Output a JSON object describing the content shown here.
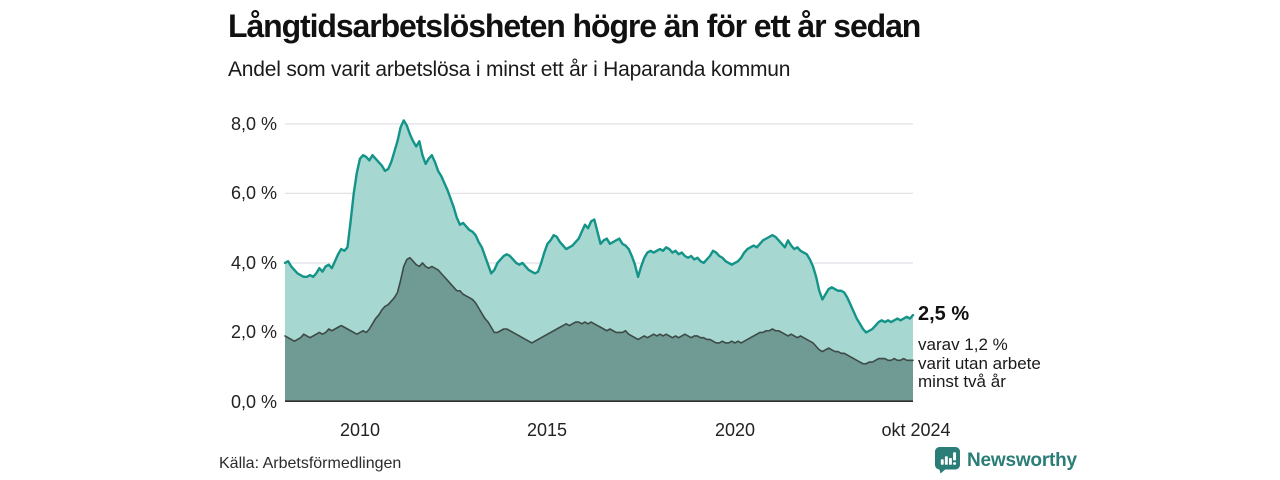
{
  "header": {
    "title": "Långtidsarbetslösheten högre än för ett år sedan",
    "subtitle": "Andel som varit arbetslösa i minst ett år i Haparanda kommun"
  },
  "footer": {
    "source": "Källa: Arbetsförmedlingen",
    "brand": "Newsworthy"
  },
  "colors": {
    "brand_teal": "#2b7d77",
    "light_area_fill": "#a6d7d0",
    "light_area_line": "#149489",
    "dark_area_fill": "#6f9b94",
    "dark_area_line": "#3d4a46",
    "gridline": "#e1e1e6",
    "baseline": "#2f2f2f"
  },
  "chart_data": {
    "type": "area",
    "title": "Långtidsarbetslösheten högre än för ett år sedan",
    "subtitle": "Andel som varit arbetslösa i minst ett år i Haparanda kommun",
    "region": "Haparanda kommun",
    "x_start": "2008-01",
    "x_end": "2024-10",
    "x_interval": "monthly",
    "x_tick_labels": [
      "2010",
      "2015",
      "2020",
      "okt 2024"
    ],
    "y_tick_labels": [
      "8,0 %",
      "6,0 %",
      "4,0 %",
      "2,0 %",
      "0,0 %"
    ],
    "ylim": [
      0,
      8.63
    ],
    "gridline_values": [
      2,
      4,
      6,
      8
    ],
    "grid": true,
    "legend_position": "none",
    "annotation": {
      "value_label": "2,5 %",
      "detail_lines": [
        "varav 1,2 %",
        "varit utan arbete",
        "minst två år"
      ]
    },
    "series": [
      {
        "name": "Andel arbetslösa minst ett år",
        "final_value": 2.5,
        "fill": "#a6d7d0",
        "line": "#149489",
        "line_width": 2.4,
        "values": [
          4.0,
          4.05,
          3.9,
          3.8,
          3.7,
          3.65,
          3.6,
          3.6,
          3.65,
          3.6,
          3.7,
          3.85,
          3.75,
          3.9,
          3.95,
          3.85,
          4.05,
          4.25,
          4.4,
          4.35,
          4.45,
          5.2,
          6.0,
          6.6,
          7.0,
          7.1,
          7.05,
          6.95,
          7.1,
          7.0,
          6.9,
          6.8,
          6.65,
          6.7,
          6.9,
          7.2,
          7.5,
          7.9,
          8.1,
          7.95,
          7.7,
          7.5,
          7.35,
          7.5,
          7.1,
          6.85,
          7.0,
          7.1,
          6.9,
          6.65,
          6.5,
          6.3,
          6.1,
          5.85,
          5.6,
          5.3,
          5.1,
          5.15,
          5.05,
          4.95,
          4.9,
          4.8,
          4.6,
          4.45,
          4.2,
          3.95,
          3.7,
          3.8,
          4.0,
          4.1,
          4.2,
          4.25,
          4.2,
          4.1,
          4.0,
          3.95,
          4.0,
          3.9,
          3.8,
          3.75,
          3.7,
          3.75,
          4.0,
          4.3,
          4.55,
          4.65,
          4.8,
          4.75,
          4.6,
          4.5,
          4.4,
          4.45,
          4.5,
          4.6,
          4.7,
          4.9,
          5.1,
          5.0,
          5.2,
          5.25,
          4.9,
          4.55,
          4.65,
          4.7,
          4.55,
          4.6,
          4.65,
          4.7,
          4.55,
          4.5,
          4.4,
          4.2,
          3.95,
          3.6,
          3.9,
          4.15,
          4.3,
          4.35,
          4.3,
          4.35,
          4.4,
          4.35,
          4.45,
          4.4,
          4.3,
          4.35,
          4.25,
          4.3,
          4.2,
          4.15,
          4.2,
          4.1,
          4.15,
          4.05,
          4.0,
          4.1,
          4.2,
          4.35,
          4.3,
          4.2,
          4.15,
          4.05,
          4.0,
          3.95,
          4.0,
          4.05,
          4.15,
          4.3,
          4.4,
          4.45,
          4.5,
          4.45,
          4.55,
          4.65,
          4.7,
          4.75,
          4.8,
          4.75,
          4.65,
          4.55,
          4.45,
          4.65,
          4.5,
          4.4,
          4.45,
          4.35,
          4.3,
          4.25,
          4.1,
          3.9,
          3.6,
          3.2,
          2.95,
          3.1,
          3.25,
          3.3,
          3.25,
          3.2,
          3.2,
          3.15,
          3.0,
          2.8,
          2.6,
          2.4,
          2.25,
          2.1,
          2.0,
          2.05,
          2.1,
          2.2,
          2.3,
          2.35,
          2.3,
          2.35,
          2.3,
          2.35,
          2.4,
          2.35,
          2.4,
          2.45,
          2.4,
          2.5
        ]
      },
      {
        "name": "Andel arbetslösa minst två år",
        "final_value": 1.2,
        "fill": "#6f9b94",
        "line": "#3d4a46",
        "line_width": 1.6,
        "values": [
          1.9,
          1.85,
          1.8,
          1.75,
          1.8,
          1.85,
          1.95,
          1.9,
          1.85,
          1.9,
          1.95,
          2.0,
          1.95,
          2.0,
          2.1,
          2.05,
          2.1,
          2.15,
          2.2,
          2.15,
          2.1,
          2.05,
          2.0,
          1.95,
          2.0,
          2.05,
          2.0,
          2.1,
          2.25,
          2.4,
          2.5,
          2.65,
          2.75,
          2.8,
          2.9,
          3.0,
          3.15,
          3.5,
          3.9,
          4.1,
          4.15,
          4.05,
          3.95,
          3.9,
          4.0,
          3.9,
          3.85,
          3.9,
          3.85,
          3.8,
          3.7,
          3.6,
          3.5,
          3.4,
          3.3,
          3.2,
          3.2,
          3.1,
          3.05,
          3.0,
          2.95,
          2.85,
          2.7,
          2.55,
          2.4,
          2.3,
          2.15,
          2.0,
          2.0,
          2.05,
          2.1,
          2.1,
          2.05,
          2.0,
          1.95,
          1.9,
          1.85,
          1.8,
          1.75,
          1.7,
          1.75,
          1.8,
          1.85,
          1.9,
          1.95,
          2.0,
          2.05,
          2.1,
          2.15,
          2.2,
          2.25,
          2.2,
          2.25,
          2.3,
          2.3,
          2.25,
          2.3,
          2.25,
          2.3,
          2.25,
          2.2,
          2.15,
          2.1,
          2.05,
          2.1,
          2.05,
          2.0,
          2.0,
          2.0,
          2.05,
          1.95,
          1.9,
          1.85,
          1.8,
          1.85,
          1.9,
          1.85,
          1.9,
          1.95,
          1.9,
          1.95,
          1.9,
          1.95,
          1.9,
          1.85,
          1.9,
          1.85,
          1.9,
          1.95,
          1.9,
          1.85,
          1.9,
          1.9,
          1.85,
          1.85,
          1.8,
          1.8,
          1.75,
          1.7,
          1.7,
          1.75,
          1.7,
          1.7,
          1.75,
          1.7,
          1.75,
          1.7,
          1.75,
          1.8,
          1.85,
          1.9,
          1.95,
          2.0,
          2.0,
          2.05,
          2.05,
          2.1,
          2.05,
          2.05,
          2.0,
          1.95,
          1.9,
          1.95,
          1.9,
          1.85,
          1.9,
          1.85,
          1.8,
          1.75,
          1.7,
          1.6,
          1.5,
          1.45,
          1.5,
          1.55,
          1.5,
          1.45,
          1.45,
          1.4,
          1.4,
          1.35,
          1.3,
          1.25,
          1.2,
          1.15,
          1.1,
          1.1,
          1.15,
          1.15,
          1.2,
          1.25,
          1.25,
          1.25,
          1.2,
          1.2,
          1.25,
          1.2,
          1.2,
          1.25,
          1.2,
          1.2,
          1.2
        ]
      }
    ]
  }
}
